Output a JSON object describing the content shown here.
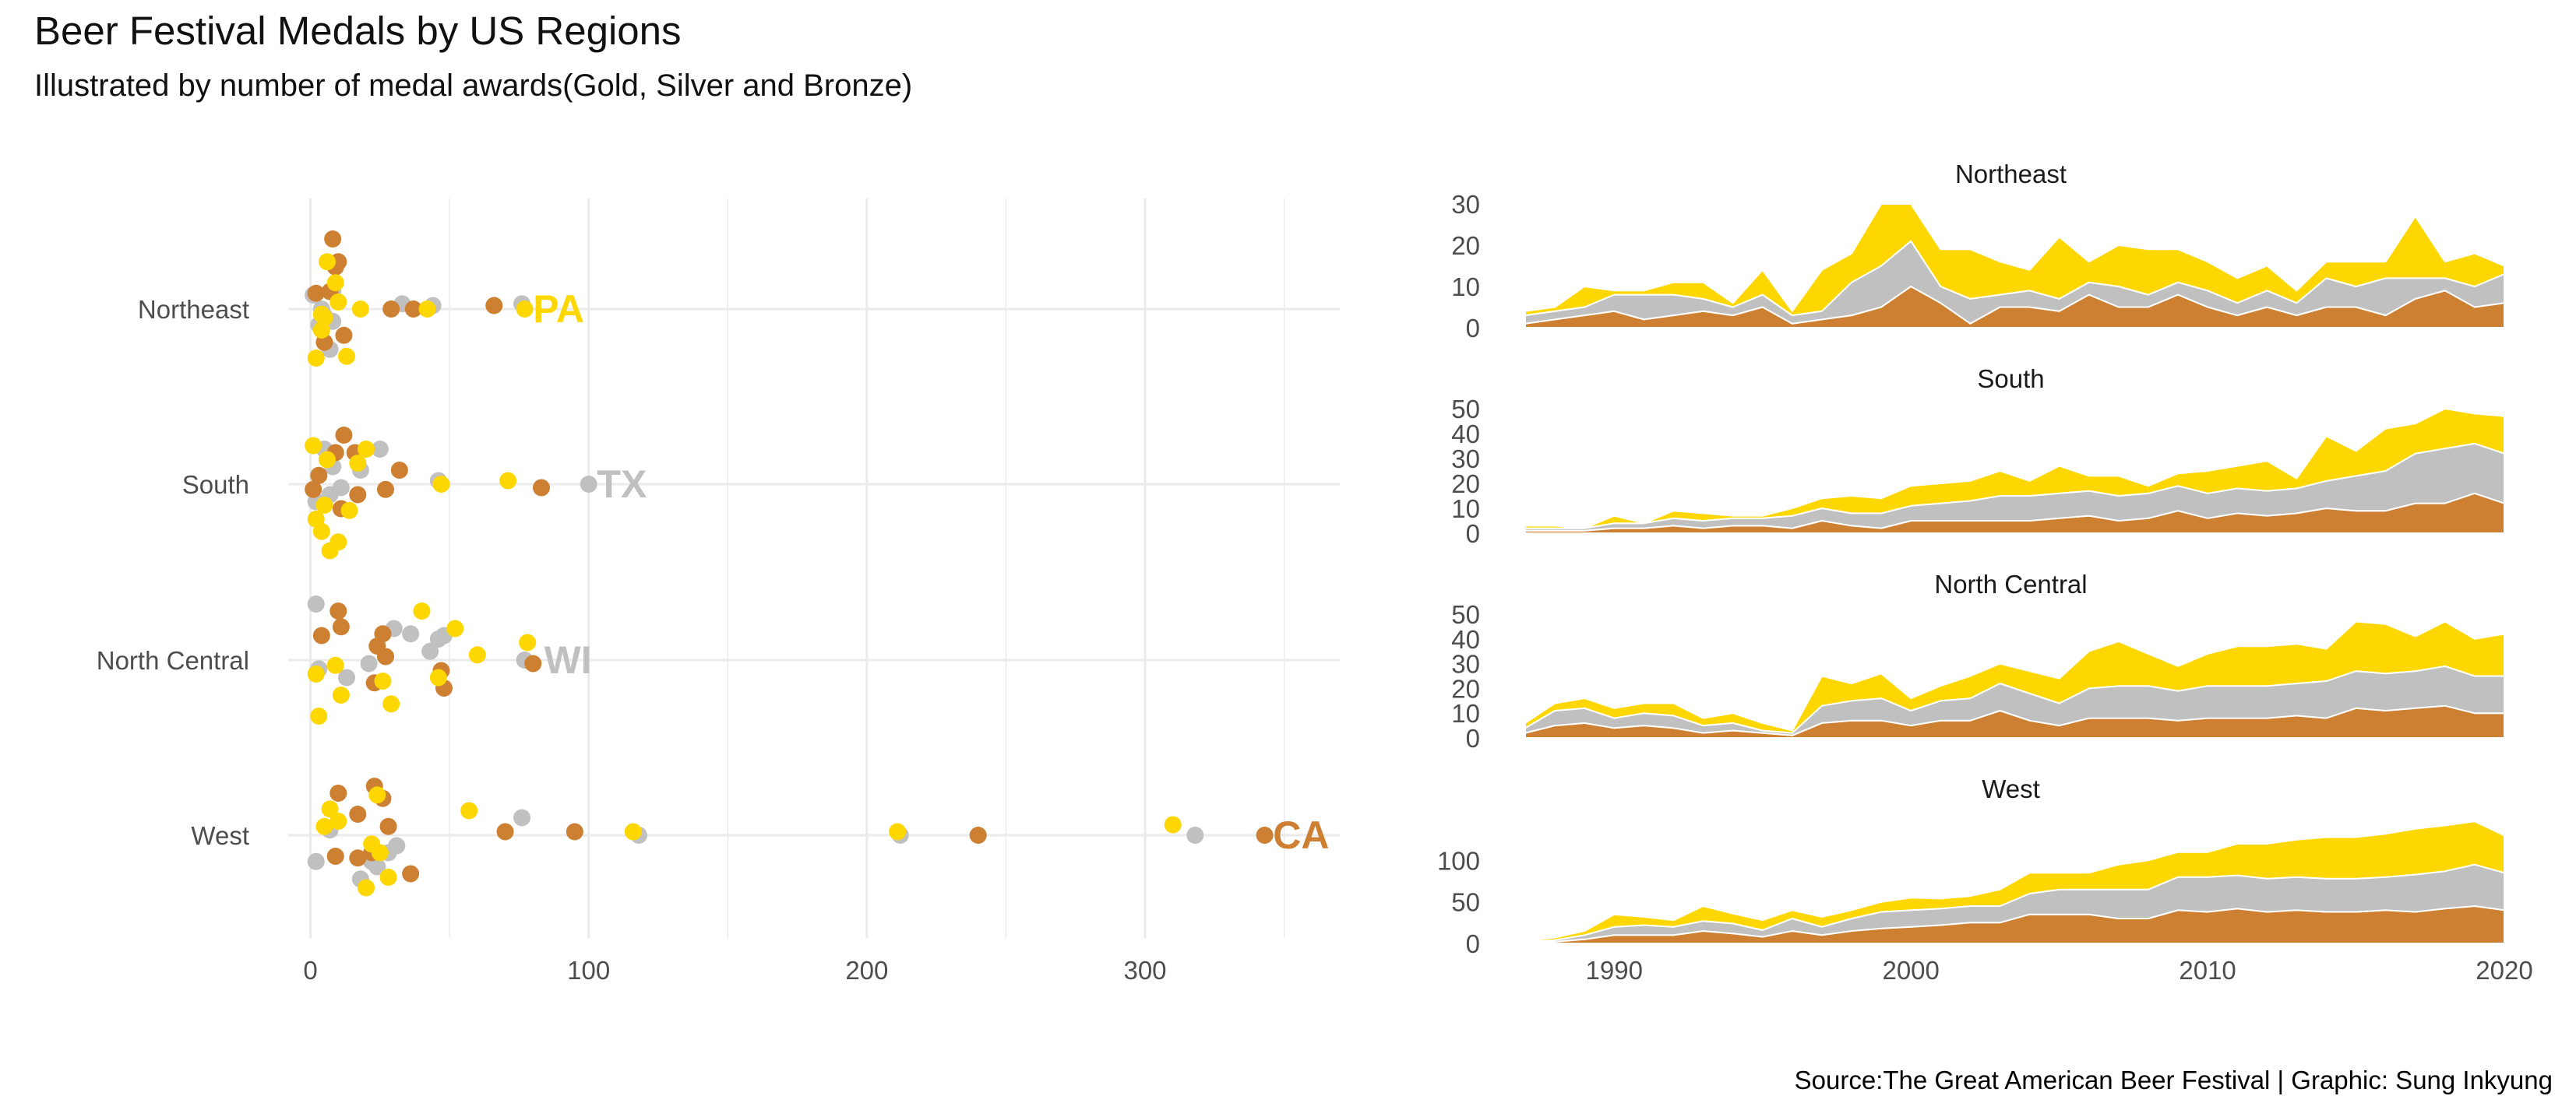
{
  "title": "Beer Festival Medals by US Regions",
  "subtitle": "Illustrated by number of medal awards(Gold, Silver and Bronze)",
  "caption": "Source:The Great American Beer Festival | Graphic: Sung Inkyung",
  "colors": {
    "gold": "#FFD700",
    "silver": "#C0C0C0",
    "bronze": "#CD7F32",
    "grid": "#EBEBEB",
    "text": "#4D4D4D"
  },
  "chart_data": [
    {
      "type": "scatter",
      "title": "",
      "xlabel": "",
      "ylabel": "",
      "xlim": [
        -8,
        370
      ],
      "x_ticks": [
        0,
        100,
        200,
        300
      ],
      "categories": [
        "Northeast",
        "South",
        "North Central",
        "West"
      ],
      "grid": true,
      "legend": "none",
      "points": {
        "Northeast": {
          "gold": [
            [
              6,
              0.27
            ],
            [
              4,
              -0.03
            ],
            [
              18,
              0
            ],
            [
              9,
              0.15
            ],
            [
              42,
              0
            ],
            [
              77,
              0
            ],
            [
              5,
              -0.05
            ],
            [
              13,
              -0.27
            ],
            [
              4,
              -0.12
            ],
            [
              2,
              -0.28
            ],
            [
              10,
              0.04
            ]
          ],
          "silver": [
            [
              8,
              0.1
            ],
            [
              1,
              0.08
            ],
            [
              33,
              0.03
            ],
            [
              44,
              0.02
            ],
            [
              76,
              0.03
            ],
            [
              5,
              -0.04
            ],
            [
              8,
              -0.07
            ],
            [
              4,
              0
            ],
            [
              7,
              -0.23
            ],
            [
              3,
              -0.09
            ]
          ],
          "bronze": [
            [
              8,
              0.4
            ],
            [
              9,
              0.24
            ],
            [
              2,
              0.09
            ],
            [
              29,
              0
            ],
            [
              37,
              0
            ],
            [
              66,
              0.02
            ],
            [
              10,
              0.27
            ],
            [
              5,
              -0.19
            ],
            [
              12,
              -0.15
            ],
            [
              7,
              0.1
            ]
          ]
        },
        "South": {
          "gold": [
            [
              1,
              0.22
            ],
            [
              6,
              0.14
            ],
            [
              47,
              0
            ],
            [
              71,
              0.02
            ],
            [
              5,
              -0.12
            ],
            [
              14,
              -0.15
            ],
            [
              4,
              -0.27
            ],
            [
              10,
              -0.33
            ],
            [
              2,
              -0.2
            ],
            [
              20,
              0.2
            ],
            [
              17,
              0.12
            ],
            [
              7,
              -0.38
            ]
          ],
          "silver": [
            [
              5,
              0.2
            ],
            [
              8,
              0.1
            ],
            [
              18,
              0.08
            ],
            [
              25,
              0.2
            ],
            [
              46,
              0.02
            ],
            [
              100,
              0
            ],
            [
              7,
              -0.06
            ],
            [
              2,
              -0.1
            ],
            [
              3,
              0.05
            ],
            [
              11,
              -0.02
            ]
          ],
          "bronze": [
            [
              12,
              0.28
            ],
            [
              3,
              0.05
            ],
            [
              16,
              0.18
            ],
            [
              32,
              0.08
            ],
            [
              83,
              -0.02
            ],
            [
              27,
              -0.03
            ],
            [
              17,
              -0.06
            ],
            [
              11,
              -0.14
            ],
            [
              1,
              -0.03
            ],
            [
              9,
              0.18
            ]
          ]
        },
        "North Central": {
          "gold": [
            [
              40,
              0.28
            ],
            [
              52,
              0.18
            ],
            [
              60,
              0.03
            ],
            [
              78,
              0.1
            ],
            [
              46,
              -0.1
            ],
            [
              11,
              -0.2
            ],
            [
              3,
              -0.32
            ],
            [
              29,
              -0.25
            ],
            [
              9,
              -0.03
            ],
            [
              26,
              -0.12
            ],
            [
              2,
              -0.08
            ]
          ],
          "silver": [
            [
              2,
              0.32
            ],
            [
              30,
              0.18
            ],
            [
              48,
              0.14
            ],
            [
              43,
              0.05
            ],
            [
              77,
              0
            ],
            [
              13,
              -0.1
            ],
            [
              3,
              -0.05
            ],
            [
              21,
              -0.02
            ],
            [
              36,
              0.15
            ],
            [
              46,
              0.12
            ]
          ],
          "bronze": [
            [
              10,
              0.28
            ],
            [
              11,
              0.19
            ],
            [
              4,
              0.14
            ],
            [
              24,
              0.08
            ],
            [
              27,
              0.02
            ],
            [
              80,
              -0.02
            ],
            [
              47,
              -0.06
            ],
            [
              48,
              -0.16
            ],
            [
              23,
              -0.13
            ],
            [
              26,
              0.15
            ]
          ]
        },
        "West": {
          "gold": [
            [
              57,
              0.14
            ],
            [
              116,
              0.02
            ],
            [
              211,
              0.02
            ],
            [
              310,
              0.06
            ],
            [
              24,
              0.23
            ],
            [
              7,
              0.15
            ],
            [
              10,
              0.08
            ],
            [
              5,
              0.05
            ],
            [
              22,
              -0.05
            ],
            [
              28,
              -0.24
            ],
            [
              20,
              -0.3
            ],
            [
              25,
              -0.1
            ]
          ],
          "silver": [
            [
              76,
              0.1
            ],
            [
              118,
              0
            ],
            [
              212,
              0
            ],
            [
              318,
              0
            ],
            [
              7,
              0.03
            ],
            [
              2,
              -0.15
            ],
            [
              18,
              -0.25
            ],
            [
              24,
              -0.18
            ],
            [
              28,
              -0.1
            ],
            [
              31,
              -0.06
            ],
            [
              22,
              -0.15
            ]
          ],
          "bronze": [
            [
              10,
              0.24
            ],
            [
              23,
              0.28
            ],
            [
              26,
              0.21
            ],
            [
              17,
              0.12
            ],
            [
              28,
              0.05
            ],
            [
              70,
              0.02
            ],
            [
              95,
              0.02
            ],
            [
              240,
              0
            ],
            [
              343,
              0
            ],
            [
              9,
              -0.12
            ],
            [
              22,
              -0.1
            ],
            [
              36,
              -0.22
            ],
            [
              17,
              -0.13
            ]
          ]
        }
      },
      "labels": [
        {
          "text": "PA",
          "region": "Northeast",
          "x": 80,
          "medal": "gold"
        },
        {
          "text": "TX",
          "region": "South",
          "x": 103,
          "medal": "silver"
        },
        {
          "text": "WI",
          "region": "North Central",
          "x": 84,
          "medal": "silver"
        },
        {
          "text": "CA",
          "region": "West",
          "x": 346,
          "medal": "bronze"
        }
      ]
    },
    {
      "type": "area",
      "stacked": true,
      "title": "",
      "xlabel": "",
      "ylabel": "",
      "xlim": [
        1987,
        2020
      ],
      "x_ticks": [
        1990,
        2000,
        2010,
        2020
      ],
      "years": [
        1987,
        1988,
        1989,
        1990,
        1991,
        1992,
        1993,
        1994,
        1995,
        1996,
        1997,
        1998,
        1999,
        2000,
        2001,
        2002,
        2003,
        2004,
        2005,
        2006,
        2007,
        2008,
        2009,
        2010,
        2011,
        2012,
        2013,
        2014,
        2015,
        2016,
        2017,
        2018,
        2019,
        2020
      ],
      "series_order": [
        "bronze",
        "silver",
        "gold"
      ],
      "panels": [
        {
          "name": "Northeast",
          "ylim": [
            0,
            30
          ],
          "y_ticks": [
            0,
            10,
            20,
            30
          ],
          "bronze": [
            1,
            2,
            3,
            4,
            2,
            3,
            4,
            3,
            5,
            1,
            2,
            3,
            5,
            10,
            6,
            1,
            5,
            5,
            4,
            8,
            5,
            5,
            8,
            5,
            3,
            5,
            3,
            5,
            5,
            3,
            7,
            9,
            5,
            6
          ],
          "silver": [
            2,
            2,
            2,
            4,
            6,
            5,
            3,
            2,
            3,
            2,
            2,
            8,
            10,
            11,
            4,
            6,
            3,
            4,
            3,
            3,
            5,
            3,
            3,
            4,
            3,
            4,
            3,
            7,
            5,
            9,
            5,
            3,
            5,
            7
          ],
          "gold": [
            1,
            1,
            5,
            1,
            1,
            3,
            4,
            1,
            6,
            1,
            10,
            7,
            15,
            9,
            9,
            12,
            8,
            5,
            15,
            5,
            10,
            11,
            8,
            7,
            6,
            6,
            3,
            4,
            6,
            4,
            15,
            4,
            8,
            2
          ]
        },
        {
          "name": "South",
          "ylim": [
            0,
            50
          ],
          "y_ticks": [
            0,
            10,
            20,
            30,
            40,
            50
          ],
          "bronze": [
            1,
            1,
            1,
            2,
            2,
            3,
            2,
            3,
            3,
            2,
            5,
            3,
            2,
            5,
            5,
            5,
            5,
            5,
            6,
            7,
            5,
            6,
            9,
            6,
            8,
            7,
            8,
            10,
            9,
            9,
            12,
            12,
            16,
            12
          ],
          "silver": [
            1,
            1,
            1,
            2,
            2,
            3,
            3,
            3,
            3,
            5,
            5,
            5,
            6,
            6,
            7,
            8,
            10,
            10,
            10,
            10,
            10,
            10,
            10,
            10,
            10,
            10,
            10,
            11,
            14,
            16,
            20,
            22,
            20,
            20
          ],
          "gold": [
            1,
            1,
            0,
            3,
            0,
            3,
            3,
            1,
            1,
            3,
            4,
            7,
            6,
            8,
            8,
            8,
            10,
            6,
            11,
            6,
            8,
            3,
            5,
            9,
            9,
            12,
            4,
            18,
            10,
            17,
            12,
            16,
            12,
            15
          ]
        },
        {
          "name": "North Central",
          "ylim": [
            0,
            50
          ],
          "y_ticks": [
            0,
            10,
            20,
            30,
            40,
            50
          ],
          "bronze": [
            2,
            5,
            6,
            4,
            5,
            4,
            2,
            3,
            2,
            1,
            6,
            7,
            7,
            5,
            7,
            7,
            11,
            7,
            5,
            8,
            8,
            8,
            7,
            8,
            8,
            8,
            9,
            8,
            12,
            11,
            12,
            13,
            10,
            10
          ],
          "silver": [
            2,
            6,
            6,
            4,
            5,
            5,
            3,
            3,
            1,
            1,
            7,
            8,
            9,
            6,
            8,
            9,
            11,
            11,
            9,
            12,
            13,
            13,
            12,
            13,
            13,
            13,
            13,
            15,
            15,
            15,
            15,
            16,
            15,
            15
          ],
          "gold": [
            2,
            3,
            4,
            4,
            4,
            5,
            3,
            4,
            3,
            1,
            12,
            7,
            10,
            5,
            6,
            9,
            8,
            9,
            10,
            15,
            18,
            13,
            10,
            13,
            16,
            16,
            16,
            13,
            20,
            20,
            14,
            18,
            15,
            17
          ]
        },
        {
          "name": "West",
          "ylim": [
            0,
            150
          ],
          "y_ticks": [
            0,
            50,
            100
          ],
          "bronze": [
            1,
            2,
            5,
            10,
            10,
            10,
            15,
            12,
            8,
            15,
            10,
            15,
            18,
            20,
            22,
            25,
            25,
            35,
            35,
            35,
            30,
            30,
            40,
            38,
            42,
            38,
            40,
            38,
            38,
            40,
            38,
            42,
            45,
            40
          ],
          "silver": [
            1,
            2,
            5,
            10,
            12,
            10,
            12,
            12,
            8,
            15,
            10,
            15,
            20,
            20,
            20,
            20,
            20,
            25,
            30,
            30,
            35,
            35,
            40,
            42,
            40,
            40,
            40,
            40,
            40,
            40,
            45,
            45,
            50,
            45
          ],
          "gold": [
            1,
            3,
            5,
            15,
            10,
            8,
            18,
            12,
            12,
            10,
            12,
            10,
            12,
            15,
            12,
            12,
            20,
            25,
            20,
            20,
            30,
            35,
            30,
            30,
            38,
            42,
            45,
            50,
            50,
            52,
            55,
            55,
            52,
            45
          ]
        }
      ]
    }
  ]
}
